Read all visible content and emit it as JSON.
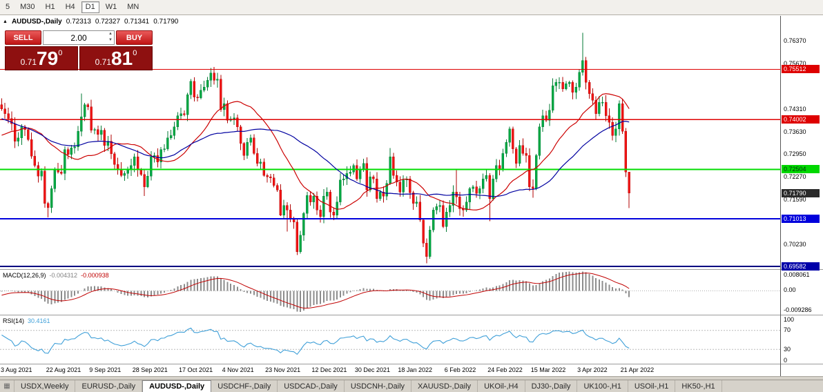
{
  "toolbar": {
    "timeframes": [
      {
        "label": "5",
        "active": false
      },
      {
        "label": "M30",
        "active": false
      },
      {
        "label": "H1",
        "active": false
      },
      {
        "label": "H4",
        "active": false
      },
      {
        "label": "D1",
        "active": true
      },
      {
        "label": "W1",
        "active": false
      },
      {
        "label": "MN",
        "active": false
      }
    ]
  },
  "chart_title": {
    "marker": "▲",
    "symbol": "AUDUSD-,Daily",
    "open": "0.72313",
    "high": "0.72327",
    "low": "0.71341",
    "close": "0.71790"
  },
  "trade_panel": {
    "sell_label": "SELL",
    "buy_label": "BUY",
    "volume": "2.00",
    "sell_price": {
      "prefix": "0.71",
      "pips": "79",
      "pipette": "0"
    },
    "buy_price": {
      "prefix": "0.71",
      "pips": "81",
      "pipette": "0"
    }
  },
  "price_axis": {
    "ticks": [
      {
        "label": "0.76370",
        "price": 0.7637
      },
      {
        "label": "0.75670",
        "price": 0.7567
      },
      {
        "label": "0.74310",
        "price": 0.7431
      },
      {
        "label": "0.73630",
        "price": 0.7363
      },
      {
        "label": "0.72950",
        "price": 0.7295
      },
      {
        "label": "0.72270",
        "price": 0.7227
      },
      {
        "label": "0.71590",
        "price": 0.7159
      },
      {
        "label": "0.70230",
        "price": 0.7023
      }
    ],
    "badges": [
      {
        "label": "0.75512",
        "price": 0.75512,
        "bg": "#de0000",
        "fg": "#ffffff"
      },
      {
        "label": "0.74002",
        "price": 0.74002,
        "bg": "#de0000",
        "fg": "#ffffff"
      },
      {
        "label": "0.72504",
        "price": 0.72504,
        "bg": "#00d800",
        "fg": "#00300e"
      },
      {
        "label": "0.71790",
        "price": 0.7179,
        "bg": "#2a2a2a",
        "fg": "#ffffff"
      },
      {
        "label": "0.71013",
        "price": 0.71013,
        "bg": "#0000dc",
        "fg": "#ffffff"
      },
      {
        "label": "0.69582",
        "price": 0.69582,
        "bg": "#0000a8",
        "fg": "#ffffff"
      }
    ]
  },
  "chart_data": {
    "type": "candlestick",
    "symbol": "AUDUSD",
    "timeframe": "Daily",
    "range": {
      "max": 0.771,
      "min": 0.695
    },
    "up_color": "#00a843",
    "up_stroke": "#007a33",
    "down_color": "#f01414",
    "down_stroke": "#b00000",
    "open0": 0.7445,
    "pre_closes": [
      0.7562,
      0.7548,
      0.7555,
      0.7538,
      0.752,
      0.7505,
      0.7512,
      0.749,
      0.7468,
      0.7475,
      0.7452,
      0.744,
      0.7448,
      0.7425,
      0.7405,
      0.7412,
      0.7392,
      0.7375,
      0.7385,
      0.7362,
      0.734,
      0.7348,
      0.7325,
      0.7308,
      0.7315,
      0.7298,
      0.7305,
      0.7318,
      0.7332,
      0.7325,
      0.7345,
      0.7358,
      0.735,
      0.7368,
      0.738,
      0.7375,
      0.7388,
      0.7395,
      0.7402,
      0.7395
    ],
    "closes": [
      0.7432,
      0.7418,
      0.7403,
      0.7388,
      0.7335,
      0.7345,
      0.7378,
      0.737,
      0.734,
      0.729,
      0.7262,
      0.723,
      0.7245,
      0.7148,
      0.7135,
      0.7192,
      0.7252,
      0.7242,
      0.7238,
      0.731,
      0.7295,
      0.7315,
      0.7318,
      0.7365,
      0.7408,
      0.7445,
      0.7438,
      0.7368,
      0.737,
      0.7355,
      0.7368,
      0.7322,
      0.7335,
      0.7297,
      0.7265,
      0.7252,
      0.7232,
      0.7238,
      0.725,
      0.7262,
      0.7288,
      0.725,
      0.7235,
      0.7198,
      0.723,
      0.7288,
      0.7292,
      0.7272,
      0.731,
      0.7312,
      0.7345,
      0.7352,
      0.7378,
      0.7412,
      0.7418,
      0.7415,
      0.7475,
      0.7515,
      0.7468,
      0.7465,
      0.7488,
      0.7498,
      0.7518,
      0.754,
      0.7518,
      0.7522,
      0.743,
      0.7448,
      0.7398,
      0.7402,
      0.7405,
      0.7378,
      0.7328,
      0.7292,
      0.7332,
      0.7345,
      0.7298,
      0.7268,
      0.7272,
      0.7232,
      0.7228,
      0.7225,
      0.7202,
      0.7188,
      0.7112,
      0.7142,
      0.7128,
      0.7102,
      0.7092,
      0.7002,
      0.7052,
      0.7118,
      0.7172,
      0.7152,
      0.717,
      0.7128,
      0.7108,
      0.717,
      0.7182,
      0.7122,
      0.7112,
      0.7152,
      0.7218,
      0.7222,
      0.7238,
      0.7242,
      0.7262,
      0.7222,
      0.7252,
      0.7268,
      0.7188,
      0.7228,
      0.7222,
      0.7162,
      0.7182,
      0.717,
      0.7208,
      0.7288,
      0.7232,
      0.7212,
      0.7182,
      0.7218,
      0.7222,
      0.718,
      0.7148,
      0.7152,
      0.7098,
      0.7028,
      0.6988,
      0.7068,
      0.7128,
      0.7138,
      0.7142,
      0.7078,
      0.7122,
      0.7142,
      0.7182,
      0.7168,
      0.7132,
      0.7128,
      0.7152,
      0.7192,
      0.7198,
      0.7178,
      0.7192,
      0.7222,
      0.7232,
      0.7162,
      0.7222,
      0.7262,
      0.7252,
      0.7298,
      0.7332,
      0.7372,
      0.7312,
      0.7268,
      0.7322,
      0.7298,
      0.7292,
      0.7198,
      0.7192,
      0.7292,
      0.7378,
      0.7412,
      0.7398,
      0.7428,
      0.7502,
      0.7512,
      0.7512,
      0.7492,
      0.7508,
      0.7512,
      0.7482,
      0.7498,
      0.7542,
      0.7578,
      0.7512,
      0.7478,
      0.7458,
      0.7418,
      0.7452,
      0.7452,
      0.7412,
      0.7392,
      0.7352,
      0.7372,
      0.7448,
      0.7365,
      0.7242,
      0.7179
    ],
    "overrides": {
      "14": {
        "l": 0.7106
      },
      "24": {
        "h": 0.7478
      },
      "43": {
        "l": 0.717
      },
      "63": {
        "h": 0.7555
      },
      "84": {
        "l": 0.711
      },
      "86": {
        "l": 0.7063
      },
      "89": {
        "l": 0.6993
      },
      "117": {
        "h": 0.7314
      },
      "128": {
        "l": 0.6968
      },
      "137": {
        "h": 0.7248
      },
      "147": {
        "l": 0.7094
      },
      "160": {
        "l": 0.7165
      },
      "175": {
        "h": 0.7661
      },
      "186": {
        "h": 0.7458
      },
      "189": {
        "h": 0.7233,
        "l": 0.7134
      }
    },
    "moving_averages": [
      {
        "period": 20,
        "color": "#cc0000"
      },
      {
        "period": 40,
        "color": "#0000a0"
      }
    ],
    "hlines": [
      {
        "price": 0.75512,
        "color": "#de0000",
        "width": 1.2
      },
      {
        "price": 0.74002,
        "color": "#de0000",
        "width": 1.2
      },
      {
        "price": 0.72504,
        "color": "#00dc00",
        "width": 2
      },
      {
        "price": 0.71013,
        "color": "#0000dc",
        "width": 2
      },
      {
        "price": 0.69582,
        "color": "#000080",
        "width": 2
      }
    ],
    "date_labels": [
      {
        "label": "3 Aug 2021",
        "i": 0
      },
      {
        "label": "22 Aug 2021",
        "i": 14
      },
      {
        "label": "9 Sep 2021",
        "i": 27
      },
      {
        "label": "28 Sep 2021",
        "i": 40
      },
      {
        "label": "17 Oct 2021",
        "i": 54
      },
      {
        "label": "4 Nov 2021",
        "i": 67
      },
      {
        "label": "23 Nov 2021",
        "i": 80
      },
      {
        "label": "12 Dec 2021",
        "i": 94
      },
      {
        "label": "30 Dec 2021",
        "i": 107
      },
      {
        "label": "18 Jan 2022",
        "i": 120
      },
      {
        "label": "6 Feb 2022",
        "i": 134
      },
      {
        "label": "24 Feb 2022",
        "i": 147
      },
      {
        "label": "15 Mar 2022",
        "i": 160
      },
      {
        "label": "3 Apr 2022",
        "i": 174
      },
      {
        "label": "21 Apr 2022",
        "i": 187
      }
    ]
  },
  "macd": {
    "title": "MACD(12,26,9)",
    "value1": "-0.004312",
    "value2": "-0.000938",
    "ticks": {
      "top": "0.008061",
      "zero": "0.00",
      "bottom": "-0.009286"
    },
    "range": {
      "max": 0.0081,
      "min": -0.0093
    },
    "hist_color": "#8c8c8c",
    "signal_color": "#c00000"
  },
  "rsi": {
    "title": "RSI(14)",
    "value": "30.4161",
    "ticks": [
      {
        "label": "100",
        "value": 100
      },
      {
        "label": "70",
        "value": 70
      },
      {
        "label": "30",
        "value": 30
      },
      {
        "label": "0",
        "value": 0
      }
    ],
    "levels": [
      70,
      30
    ],
    "line_color": "#3e9fd8"
  },
  "tabs": {
    "active_index": 2,
    "items": [
      {
        "label": "USDX,Weekly"
      },
      {
        "label": "EURUSD-,Daily"
      },
      {
        "label": "AUDUSD-,Daily"
      },
      {
        "label": "USDCHF-,Daily"
      },
      {
        "label": "USDCAD-,Daily"
      },
      {
        "label": "USDCNH-,Daily"
      },
      {
        "label": "XAUUSD-,Daily"
      },
      {
        "label": "UKOil-,H4"
      },
      {
        "label": "DJ30-,Daily"
      },
      {
        "label": "UK100-,H1"
      },
      {
        "label": "USOil-,H1"
      },
      {
        "label": "HK50-,H1"
      }
    ]
  }
}
